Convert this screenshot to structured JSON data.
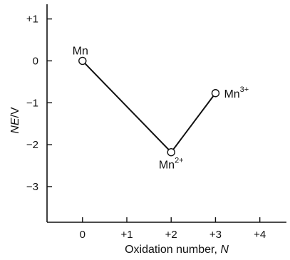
{
  "chart_data": {
    "type": "line",
    "xlabel_main": "Oxidation number, ",
    "xlabel_var": "N",
    "ylabel_var": "NE",
    "ylabel_unit": "/V",
    "xlim": [
      -0.8,
      4.6
    ],
    "ylim": [
      -3.85,
      1.35
    ],
    "x_ticks": [
      0,
      1,
      2,
      3,
      4
    ],
    "x_tick_labels": [
      "0",
      "+1",
      "+2",
      "+3",
      "+4"
    ],
    "y_ticks": [
      1,
      0,
      -1,
      -2,
      -3
    ],
    "y_tick_labels": [
      "+1",
      "0",
      "−1",
      "−2",
      "−3"
    ],
    "series": [
      {
        "points": [
          {
            "x": 0,
            "y": 0,
            "label": "Mn",
            "sup": ""
          },
          {
            "x": 2,
            "y": -2.18,
            "label": "Mn",
            "sup": "2+"
          },
          {
            "x": 3,
            "y": -0.77,
            "label": "Mn",
            "sup": "3+"
          }
        ]
      }
    ],
    "grid": false,
    "colors": {
      "line": "#111111",
      "marker_fill": "#ffffff"
    }
  }
}
